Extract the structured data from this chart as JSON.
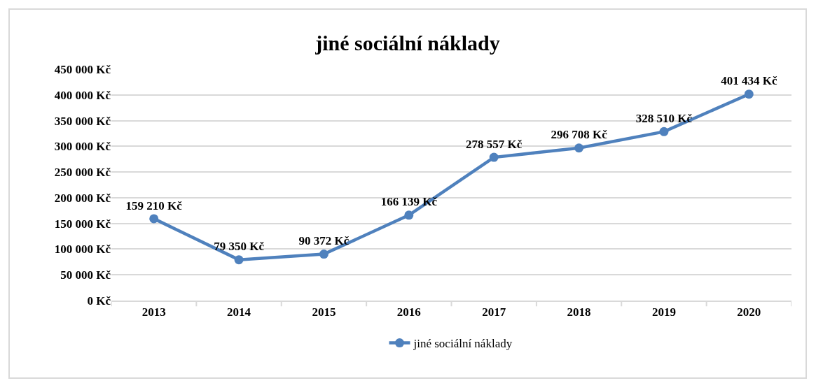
{
  "chart_data": {
    "type": "line",
    "title": "jiné sociální náklady",
    "categories": [
      "2013",
      "2014",
      "2015",
      "2016",
      "2017",
      "2018",
      "2019",
      "2020"
    ],
    "series": [
      {
        "name": "jiné sociální náklady",
        "color": "#4f81bd",
        "values": [
          159210,
          79350,
          90372,
          166139,
          278557,
          296708,
          328510,
          401434
        ],
        "value_labels": [
          "159 210 Kč",
          "79 350 Kč",
          "90 372 Kč",
          "166 139 Kč",
          "278 557 Kč",
          "296 708 Kč",
          "328 510 Kč",
          "401 434 Kč"
        ]
      }
    ],
    "ylim": [
      0,
      450000
    ],
    "yticks": [
      {
        "value": 0,
        "label": "0 Kč"
      },
      {
        "value": 50000,
        "label": "50 000 Kč"
      },
      {
        "value": 100000,
        "label": "100 000 Kč"
      },
      {
        "value": 150000,
        "label": "150 000 Kč"
      },
      {
        "value": 200000,
        "label": "200 000 Kč"
      },
      {
        "value": 250000,
        "label": "250 000 Kč"
      },
      {
        "value": 300000,
        "label": "300 000 Kč"
      },
      {
        "value": 350000,
        "label": "350 000 Kč"
      },
      {
        "value": 400000,
        "label": "400 000 Kč"
      },
      {
        "value": 450000,
        "label": "450 000 Kč"
      }
    ],
    "grid": "y",
    "legend": "bottom",
    "marker": "circle",
    "line_style": "solid"
  }
}
